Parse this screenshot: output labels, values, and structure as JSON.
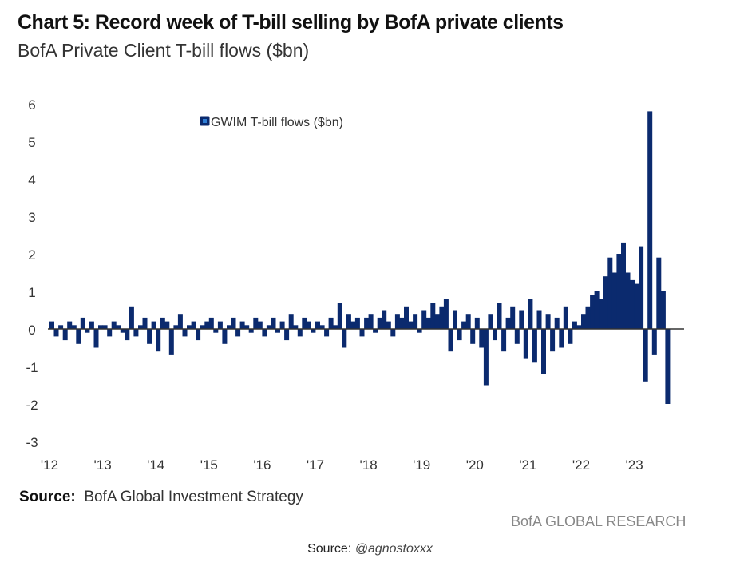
{
  "title": "Chart 5: Record week of T-bill selling by BofA private clients",
  "subtitle": "BofA Private Client T-bill flows ($bn)",
  "source_label": "Source:",
  "source_text": "BofA Global Investment Strategy",
  "brand": "BofA GLOBAL RESEARCH",
  "credit_label": "Source:",
  "credit_handle": "@agnostoxxx",
  "colors": {
    "bar": "#0b2a6e",
    "axis": "#333333"
  },
  "chart_data": {
    "type": "bar",
    "title": "BofA Private Client T-bill flows ($bn)",
    "ylim": [
      -3,
      6
    ],
    "yticks": [
      "6",
      "5",
      "4",
      "3",
      "2",
      "1",
      "0",
      "-1",
      "-2",
      "-3"
    ],
    "xticks": [
      "'12",
      "'13",
      "'14",
      "'15",
      "'16",
      "'17",
      "'18",
      "'19",
      "'20",
      "'21",
      "'22",
      "'23"
    ],
    "legend": {
      "label": "GWIM T-bill flows ($bn)",
      "placement": "top-center"
    },
    "grid": false,
    "series": [
      {
        "year": 2012,
        "values": [
          0.2,
          -0.2,
          0.1,
          -0.3,
          0.2,
          0.1,
          -0.4,
          0.3,
          -0.1,
          0.2,
          -0.5,
          0.1
        ]
      },
      {
        "year": 2013,
        "values": [
          0.1,
          -0.2,
          0.2,
          0.1,
          -0.1,
          -0.3,
          0.6,
          -0.2,
          0.1,
          0.3,
          -0.4,
          0.2
        ]
      },
      {
        "year": 2014,
        "values": [
          -0.6,
          0.3,
          0.2,
          -0.7,
          0.1,
          0.4,
          -0.2,
          0.1,
          0.2,
          -0.3,
          0.1,
          0.2
        ]
      },
      {
        "year": 2015,
        "values": [
          0.3,
          -0.1,
          0.2,
          -0.4,
          0.1,
          0.3,
          -0.2,
          0.2,
          0.1,
          -0.1,
          0.3,
          0.2
        ]
      },
      {
        "year": 2016,
        "values": [
          -0.2,
          0.1,
          0.3,
          -0.1,
          0.2,
          -0.3,
          0.4,
          0.1,
          -0.2,
          0.3,
          0.2,
          -0.1
        ]
      },
      {
        "year": 2017,
        "values": [
          0.2,
          0.1,
          -0.2,
          0.3,
          0.1,
          0.7,
          -0.5,
          0.4,
          0.2,
          0.3,
          -0.2,
          0.3
        ]
      },
      {
        "year": 2018,
        "values": [
          0.4,
          -0.1,
          0.3,
          0.5,
          0.2,
          -0.2,
          0.4,
          0.3,
          0.6,
          0.2,
          0.4,
          -0.1
        ]
      },
      {
        "year": 2019,
        "values": [
          0.5,
          0.3,
          0.7,
          0.4,
          0.6,
          0.8,
          -0.6,
          0.5,
          -0.3,
          0.2,
          0.4,
          -0.4
        ]
      },
      {
        "year": 2020,
        "values": [
          0.3,
          -0.5,
          -1.5,
          0.4,
          -0.3,
          0.7,
          -0.6,
          0.3,
          0.6,
          -0.4,
          0.5,
          -0.8
        ]
      },
      {
        "year": 2021,
        "values": [
          0.8,
          -0.9,
          0.5,
          -1.2,
          0.4,
          -0.6,
          0.3,
          -0.5,
          0.6,
          -0.4,
          0.2,
          0.1
        ]
      },
      {
        "year": 2022,
        "values": [
          0.4,
          0.6,
          0.9,
          1.0,
          0.8,
          1.4,
          1.9,
          1.5,
          2.0,
          2.3,
          1.5,
          1.3
        ]
      },
      {
        "year": 2023,
        "values": [
          1.2,
          2.2,
          -1.4,
          5.8,
          -0.7,
          1.9,
          1.0,
          -2.0
        ]
      }
    ]
  }
}
